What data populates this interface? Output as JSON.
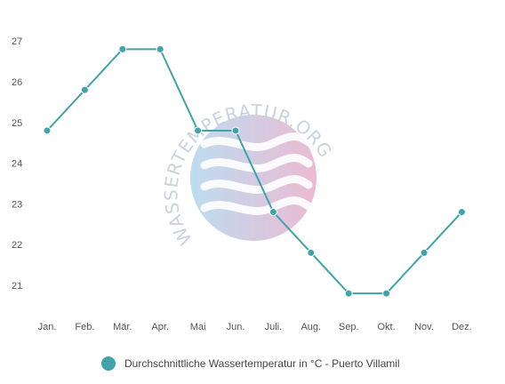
{
  "watermark": {
    "text": "WASSERTEMPERATUR.ORG",
    "color_left": "#b9daf0",
    "color_right": "#eab7cf",
    "wave_color": "#ffffff"
  },
  "chart_data": {
    "type": "line",
    "categories": [
      "Jan.",
      "Feb.",
      "Mär.",
      "Apr.",
      "Mai",
      "Jun.",
      "Juli.",
      "Aug.",
      "Sep.",
      "Okt.",
      "Nov.",
      "Dez."
    ],
    "series": [
      {
        "name": "Durchschnittliche Wassertemperatur in °C - Puerto Villamil",
        "values": [
          24.8,
          25.8,
          26.8,
          26.8,
          24.8,
          24.8,
          22.8,
          21.8,
          20.8,
          20.8,
          21.8,
          22.8
        ],
        "color": "#3fa3a9"
      }
    ],
    "yticks": [
      21,
      22,
      23,
      24,
      25,
      26,
      27
    ],
    "ylim": [
      20.3,
      27.2
    ],
    "grid": false,
    "legend_position": "bottom"
  }
}
